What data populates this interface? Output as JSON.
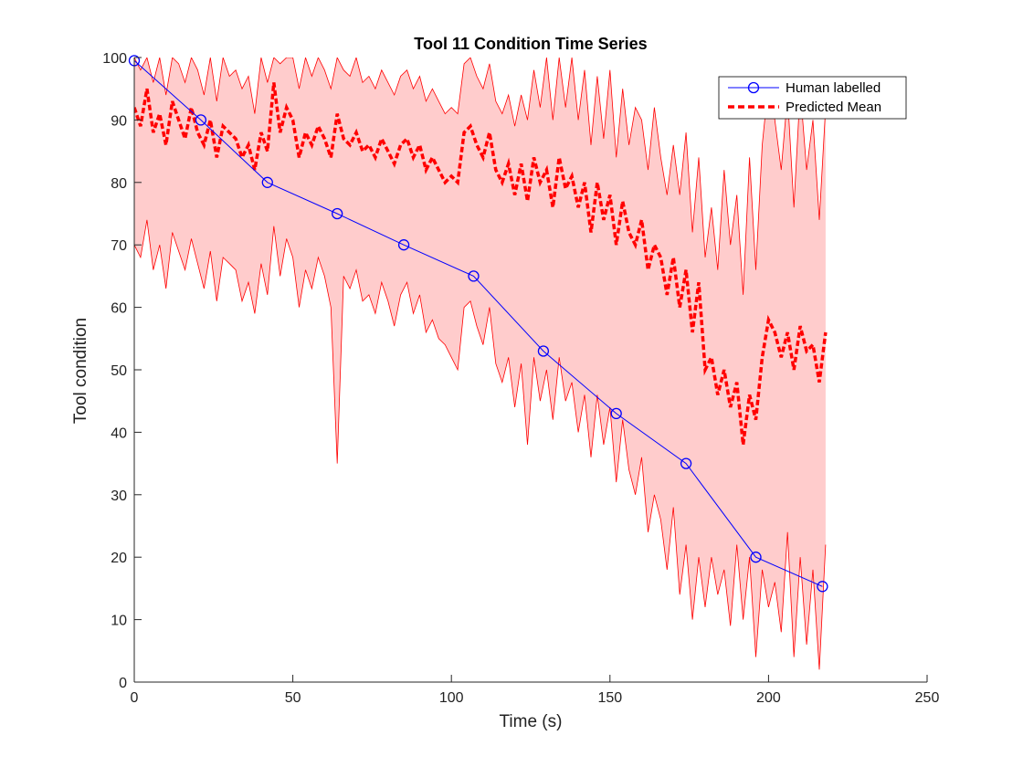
{
  "chart_data": {
    "type": "line",
    "title": "Tool 11 Condition Time Series",
    "xlabel": "Time (s)",
    "ylabel": "Tool condition",
    "xlim": [
      0,
      250
    ],
    "ylim": [
      0,
      100
    ],
    "xticks": [
      0,
      50,
      100,
      150,
      200,
      250
    ],
    "yticks": [
      0,
      10,
      20,
      30,
      40,
      50,
      60,
      70,
      80,
      90,
      100
    ],
    "grid": false,
    "legend_position": "top-right",
    "colors": {
      "human": "#0000ff",
      "mean": "#ff0000",
      "band_fill": "#ffcccc",
      "band_edge": "#ff0000"
    },
    "series": [
      {
        "name": "Human labelled",
        "style": "line-with-circle-markers",
        "x": [
          0,
          21,
          42,
          64,
          85,
          107,
          129,
          152,
          174,
          196,
          217
        ],
        "y": [
          99.5,
          90,
          80,
          75,
          70,
          65,
          53,
          43,
          35,
          20,
          15.3
        ]
      },
      {
        "name": "Predicted Mean",
        "style": "dashed",
        "x": [
          0,
          2,
          4,
          6,
          8,
          10,
          12,
          14,
          16,
          18,
          20,
          22,
          24,
          26,
          28,
          30,
          32,
          34,
          36,
          38,
          40,
          42,
          44,
          46,
          48,
          50,
          52,
          54,
          56,
          58,
          60,
          62,
          64,
          66,
          68,
          70,
          72,
          74,
          76,
          78,
          80,
          82,
          84,
          86,
          88,
          90,
          92,
          94,
          96,
          98,
          100,
          102,
          104,
          106,
          108,
          110,
          112,
          114,
          116,
          118,
          120,
          122,
          124,
          126,
          128,
          130,
          132,
          134,
          136,
          138,
          140,
          142,
          144,
          146,
          148,
          150,
          152,
          154,
          156,
          158,
          160,
          162,
          164,
          166,
          168,
          170,
          172,
          174,
          176,
          178,
          180,
          182,
          184,
          186,
          188,
          190,
          192,
          194,
          196,
          198,
          200,
          202,
          204,
          206,
          208,
          210,
          212,
          214,
          216,
          218
        ],
        "y": [
          92,
          89,
          95,
          88,
          91,
          86,
          93,
          90,
          87,
          92,
          88,
          86,
          90,
          84,
          89,
          88,
          87,
          84,
          86,
          82,
          88,
          85,
          96,
          88,
          92,
          90,
          84,
          88,
          86,
          89,
          87,
          84,
          91,
          87,
          86,
          88,
          85,
          86,
          84,
          87,
          85,
          83,
          86,
          87,
          84,
          86,
          82,
          84,
          82,
          80,
          81,
          80,
          88,
          89,
          86,
          84,
          88,
          82,
          80,
          83,
          78,
          83,
          77,
          84,
          80,
          82,
          76,
          84,
          79,
          81,
          76,
          80,
          72,
          80,
          74,
          78,
          70,
          77,
          72,
          70,
          74,
          66,
          70,
          68,
          62,
          68,
          60,
          66,
          56,
          64,
          50,
          52,
          46,
          50,
          44,
          48,
          38,
          46,
          42,
          52,
          58,
          56,
          52,
          56,
          50,
          57,
          53,
          54,
          48,
          56
        ],
        "band_upper": [
          100,
          98,
          100,
          96,
          100,
          94,
          100,
          99,
          96,
          100,
          98,
          94,
          100,
          93,
          100,
          97,
          98,
          95,
          97,
          91,
          100,
          96,
          100,
          99,
          100,
          100,
          95,
          100,
          97,
          100,
          98,
          95,
          100,
          98,
          97,
          100,
          96,
          97,
          95,
          98,
          96,
          94,
          97,
          98,
          95,
          97,
          93,
          95,
          93,
          91,
          92,
          91,
          99,
          100,
          97,
          95,
          99,
          93,
          91,
          94,
          89,
          94,
          90,
          98,
          92,
          100,
          90,
          100,
          92,
          100,
          90,
          98,
          86,
          97,
          87,
          98,
          84,
          95,
          86,
          92,
          90,
          82,
          92,
          84,
          78,
          86,
          78,
          88,
          72,
          84,
          68,
          76,
          66,
          82,
          70,
          78,
          62,
          84,
          66,
          86,
          96,
          90,
          82,
          94,
          76,
          95,
          82,
          90,
          74,
          92
        ],
        "band_lower": [
          70,
          68,
          74,
          66,
          70,
          63,
          72,
          69,
          66,
          71,
          67,
          63,
          69,
          61,
          68,
          67,
          66,
          61,
          64,
          59,
          67,
          62,
          73,
          65,
          71,
          68,
          60,
          66,
          63,
          68,
          65,
          60,
          35,
          65,
          63,
          66,
          61,
          62,
          59,
          64,
          61,
          57,
          62,
          64,
          59,
          62,
          56,
          58,
          55,
          54,
          52,
          50,
          60,
          61,
          57,
          54,
          60,
          51,
          48,
          52,
          44,
          51,
          38,
          52,
          45,
          50,
          42,
          52,
          45,
          48,
          40,
          46,
          36,
          46,
          38,
          44,
          32,
          42,
          34,
          30,
          36,
          24,
          30,
          26,
          18,
          28,
          14,
          22,
          10,
          20,
          12,
          20,
          14,
          18,
          9,
          22,
          10,
          20,
          4,
          18,
          12,
          16,
          8,
          24,
          4,
          20,
          6,
          18,
          2,
          22
        ]
      }
    ]
  }
}
